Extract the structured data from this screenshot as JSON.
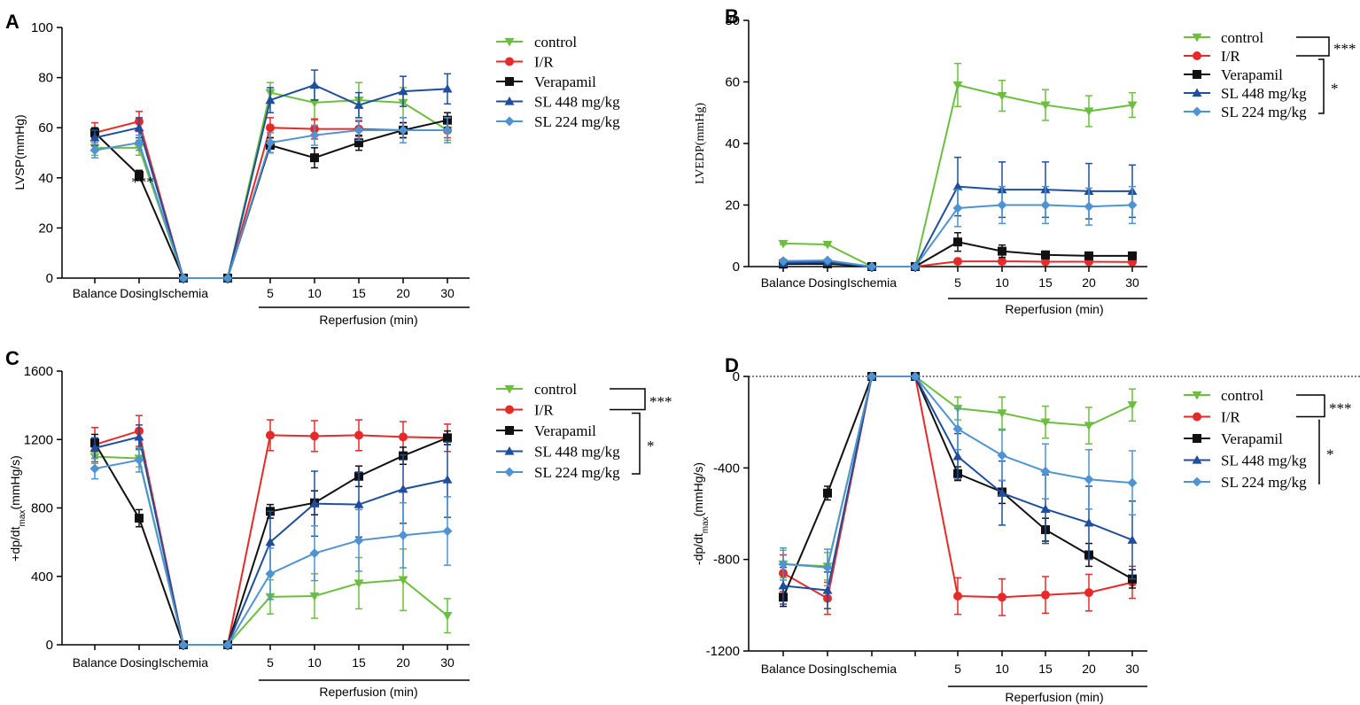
{
  "figure": {
    "categories": [
      "Balance",
      "Dosing",
      "Ischemia",
      "",
      "5",
      "10",
      "15",
      "20",
      "30"
    ],
    "reperfusion_label": "Reperfusion (min)",
    "series_colors": {
      "control": "#6cbf3e",
      "I/R": "#e52a2a",
      "Verapamil": "#111111",
      "SL 448 mg/kg": "#1f4e9c",
      "SL 224 mg/kg": "#4f93d2"
    },
    "series_markers": {
      "control": "triangle-down",
      "I/R": "circle",
      "Verapamil": "square",
      "SL 448 mg/kg": "triangle-up",
      "SL 224 mg/kg": "diamond"
    }
  },
  "chart_data": [
    {
      "panel": "A",
      "type": "line",
      "ylabel": "LVSP(mmHg)",
      "ylim": [
        0,
        100
      ],
      "yticks": [
        "0",
        "20",
        "40",
        "60",
        "80",
        "100"
      ],
      "categories": [
        "Balance",
        "Dosing",
        "Ischemia",
        "",
        "5",
        "10",
        "15",
        "20",
        "30"
      ],
      "series": [
        {
          "name": "control",
          "values": [
            52,
            52,
            0,
            0,
            74,
            70,
            71,
            70,
            59
          ],
          "errors": [
            3,
            3,
            0,
            0,
            4,
            7,
            7,
            6,
            4
          ]
        },
        {
          "name": "I/R",
          "values": [
            58,
            62.5,
            0,
            0,
            60,
            59.5,
            59.5,
            59,
            59
          ],
          "errors": [
            4,
            4,
            0,
            0,
            4,
            4,
            3,
            3,
            3
          ]
        },
        {
          "name": "Verapamil",
          "values": [
            58,
            41,
            0,
            0,
            53,
            48,
            54,
            59,
            63
          ],
          "errors": [
            2,
            2,
            0,
            0,
            3,
            4,
            3,
            3,
            3
          ]
        },
        {
          "name": "SL 448 mg/kg",
          "values": [
            56,
            60,
            0,
            0,
            71,
            77,
            69,
            74.5,
            75.5
          ],
          "errors": [
            3,
            4,
            0,
            0,
            5,
            6,
            5,
            6,
            6
          ]
        },
        {
          "name": "SL 224 mg/kg",
          "values": [
            51,
            54,
            0,
            0,
            54,
            57,
            59,
            59,
            59
          ],
          "errors": [
            3,
            3,
            0,
            0,
            4,
            4,
            4,
            5,
            5
          ]
        }
      ],
      "annotations": [
        {
          "text": "***",
          "category": "Dosing",
          "y": 40
        }
      ],
      "significance": []
    },
    {
      "panel": "B",
      "type": "line",
      "ylabel": "LVEDP(mmHg)",
      "ylim": [
        0,
        80
      ],
      "yticks": [
        "0",
        "20",
        "40",
        "60",
        "80"
      ],
      "categories": [
        "Balance",
        "Dosing",
        "Ischemia",
        "",
        "5",
        "10",
        "15",
        "20",
        "30"
      ],
      "series": [
        {
          "name": "control",
          "values": [
            7.5,
            7.2,
            0,
            0,
            59,
            55.5,
            52.5,
            50.5,
            52.5
          ],
          "errors": [
            0.3,
            0.3,
            0,
            0,
            7,
            5,
            5,
            5,
            4
          ]
        },
        {
          "name": "I/R",
          "values": [
            1.5,
            1.5,
            0,
            0,
            1.7,
            1.7,
            1.6,
            1.6,
            1.5
          ],
          "errors": [
            0.3,
            0.3,
            0,
            0,
            0.3,
            0.3,
            0.3,
            0.3,
            0.3
          ]
        },
        {
          "name": "Verapamil",
          "values": [
            0.8,
            0.9,
            0,
            0,
            8,
            5,
            3.8,
            3.5,
            3.5
          ],
          "errors": [
            0.3,
            0.3,
            0,
            0,
            3,
            2,
            1.2,
            1,
            1
          ]
        },
        {
          "name": "SL 448 mg/kg",
          "values": [
            1.2,
            1.4,
            0,
            0,
            26,
            25,
            25,
            24.5,
            24.5
          ],
          "errors": [
            0.3,
            0.3,
            0,
            0,
            9.5,
            9,
            9,
            9,
            8.5
          ]
        },
        {
          "name": "SL 224 mg/kg",
          "values": [
            1.8,
            2,
            0,
            0,
            19,
            20,
            20,
            19.5,
            20
          ],
          "errors": [
            0.3,
            0.3,
            0,
            0,
            6,
            6,
            6,
            6,
            6
          ]
        }
      ],
      "annotations": [],
      "significance": [
        {
          "text": "***",
          "between": [
            "control",
            "I/R"
          ]
        },
        {
          "text": "*",
          "between": [
            "I/R",
            "SL 224 mg/kg"
          ]
        }
      ]
    },
    {
      "panel": "C",
      "type": "line",
      "ylabel": "+dp/dt_max(mmHg/s)",
      "ylim": [
        0,
        1600
      ],
      "yticks": [
        "0",
        "400",
        "800",
        "1200",
        "1600"
      ],
      "categories": [
        "Balance",
        "Dosing",
        "Ischemia",
        "",
        "5",
        "10",
        "15",
        "20",
        "30"
      ],
      "series": [
        {
          "name": "control",
          "values": [
            1100,
            1090,
            0,
            0,
            280,
            285,
            360,
            380,
            170
          ],
          "errors": [
            40,
            50,
            0,
            0,
            100,
            130,
            150,
            180,
            100
          ]
        },
        {
          "name": "I/R",
          "values": [
            1170,
            1250,
            0,
            0,
            1225,
            1220,
            1225,
            1215,
            1210
          ],
          "errors": [
            100,
            90,
            0,
            0,
            90,
            90,
            90,
            90,
            80
          ]
        },
        {
          "name": "Verapamil",
          "values": [
            1180,
            740,
            0,
            0,
            780,
            830,
            985,
            1105,
            1210
          ],
          "errors": [
            50,
            50,
            0,
            0,
            40,
            70,
            60,
            50,
            40
          ]
        },
        {
          "name": "SL 448 mg/kg",
          "values": [
            1150,
            1215,
            0,
            0,
            600,
            825,
            820,
            910,
            965
          ],
          "errors": [
            60,
            70,
            0,
            0,
            180,
            190,
            190,
            200,
            220
          ]
        },
        {
          "name": "SL 224 mg/kg",
          "values": [
            1030,
            1080,
            0,
            0,
            415,
            535,
            610,
            640,
            665
          ],
          "errors": [
            60,
            70,
            0,
            0,
            150,
            160,
            180,
            190,
            200
          ]
        }
      ],
      "annotations": [],
      "significance": [
        {
          "text": "***",
          "between": [
            "control",
            "I/R"
          ]
        },
        {
          "text": "*",
          "between": [
            "I/R",
            "SL 224 mg/kg"
          ]
        }
      ]
    },
    {
      "panel": "D",
      "type": "line",
      "ylabel": "-dp/dt_max(mmHg/s)",
      "ylim": [
        -1200,
        0
      ],
      "yticks": [
        "-1200",
        "-800",
        "-400",
        "0"
      ],
      "categories": [
        "Balance",
        "Dosing",
        "Ischemia",
        "",
        "5",
        "10",
        "15",
        "20",
        "30"
      ],
      "series": [
        {
          "name": "control",
          "values": [
            -820,
            -830,
            0,
            0,
            -140,
            -160,
            -200,
            -215,
            -125
          ],
          "errors": [
            60,
            60,
            0,
            0,
            50,
            70,
            70,
            80,
            70
          ]
        },
        {
          "name": "I/R",
          "values": [
            -860,
            -970,
            0,
            0,
            -960,
            -965,
            -955,
            -945,
            -900
          ],
          "errors": [
            80,
            70,
            0,
            0,
            80,
            80,
            80,
            80,
            70
          ]
        },
        {
          "name": "Verapamil",
          "values": [
            -965,
            -510,
            0,
            0,
            -425,
            -505,
            -670,
            -780,
            -885
          ],
          "errors": [
            40,
            30,
            0,
            0,
            30,
            50,
            50,
            50,
            40
          ]
        },
        {
          "name": "SL 448 mg/kg",
          "values": [
            -915,
            -935,
            0,
            0,
            -350,
            -510,
            -580,
            -640,
            -715
          ],
          "errors": [
            80,
            80,
            0,
            0,
            100,
            140,
            150,
            160,
            170
          ]
        },
        {
          "name": "SL 224 mg/kg",
          "values": [
            -820,
            -835,
            0,
            0,
            -230,
            -345,
            -415,
            -450,
            -465
          ],
          "errors": [
            70,
            80,
            0,
            0,
            90,
            110,
            120,
            130,
            140
          ]
        }
      ],
      "annotations": [],
      "significance": [
        {
          "text": "***",
          "between": [
            "control",
            "I/R"
          ]
        },
        {
          "text": "*",
          "between": [
            "I/R",
            "SL 224 mg/kg"
          ]
        }
      ]
    }
  ]
}
